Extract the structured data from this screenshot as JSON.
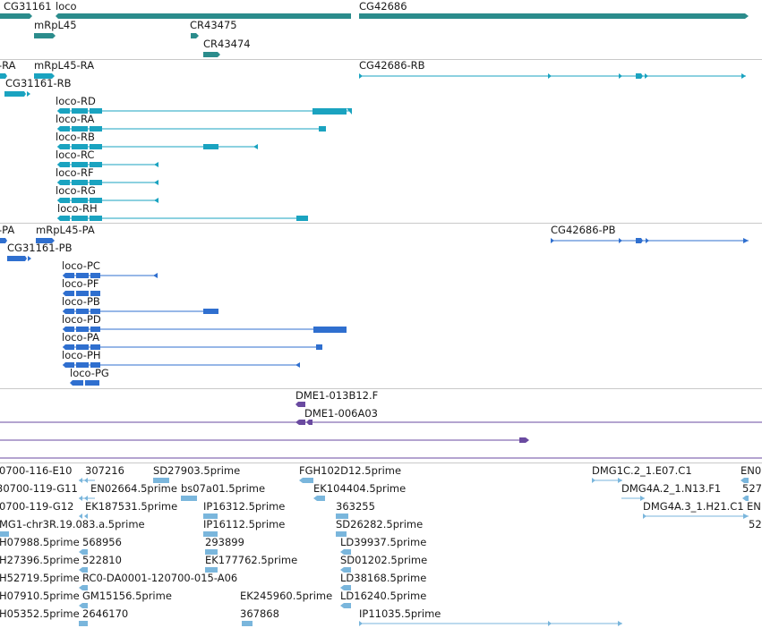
{
  "colors": {
    "gene": "#2b8c8c",
    "transcript": "#1aa3c0",
    "protein": "#2f6fcf",
    "cdna": "#6a4aa0",
    "est": "#7ab6dc",
    "separator": "#c9c9c9"
  },
  "tracks": {
    "gene_track": {
      "labels": [
        "CG31161",
        "loco",
        "CG42686",
        "mRpL45",
        "CR43475",
        "CR43474"
      ]
    },
    "transcript_track": {
      "labels": [
        "-RA",
        "mRpL45-RA",
        "CG42686-RB",
        "CG31161-RB",
        "loco-RD",
        "loco-RA",
        "loco-RB",
        "loco-RC",
        "loco-RF",
        "loco-RG",
        "loco-RH"
      ]
    },
    "protein_track": {
      "labels": [
        "-PA",
        "mRpL45-PA",
        "CG42686-PB",
        "CG31161-PB",
        "loco-PC",
        "loco-PF",
        "loco-PB",
        "loco-PD",
        "loco-PA",
        "loco-PH",
        "loco-PG"
      ]
    },
    "cdna_track": {
      "labels": [
        "DME1-013B12.F",
        "DME1-006A03"
      ]
    },
    "est_track": {
      "labels": [
        "0700-116-E10",
        "307216",
        "SD27903.5prime",
        "FGH102D12.5prime",
        "DMG1C.2_1.E07.C1",
        "EN0",
        "30700-119-G11",
        "EN02664.5prime",
        "bs07a01.5prime",
        "EK104404.5prime",
        "DMG4A.2_1.N13.F1",
        "527",
        "0700-119-G12",
        "EK187531.5prime",
        "IP16312.5prime",
        "363255",
        "DMG4A.3_1.H21.C1",
        "EN",
        "MG1-chr3R.19.083.a.5prime",
        "IP16112.5prime",
        "SD26282.5prime",
        "52",
        "H07988.5prime",
        "568956",
        "293899",
        "LD39937.5prime",
        "H27396.5prime",
        "522810",
        "EK177762.5prime",
        "SD01202.5prime",
        "H52719.5prime",
        "RC0-DA0001-120700-015-A06",
        "LD38168.5prime",
        "H07910.5prime",
        "GM15156.5prime",
        "EK245960.5prime",
        "LD16240.5prime",
        "H05352.5prime",
        "2646170",
        "367868",
        "IP11035.5prime"
      ]
    }
  }
}
